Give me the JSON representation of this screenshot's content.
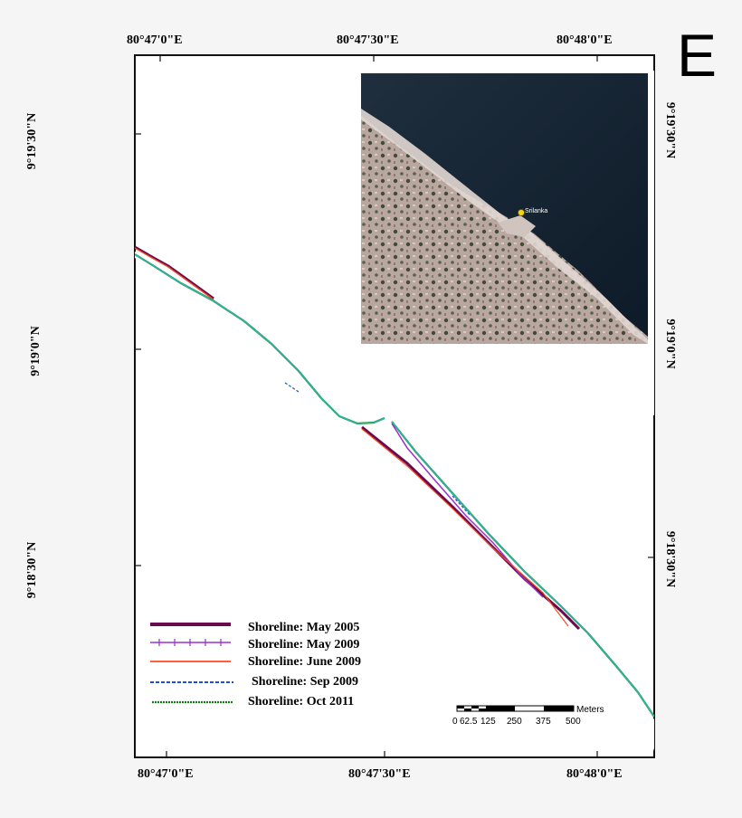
{
  "panel_label": "E",
  "top_axis": [
    "80°47'0\"E",
    "80°47'30\"E",
    "80°48'0\"E"
  ],
  "bottom_axis": [
    "80°47'0\"E",
    "80°47'30\"E",
    "80°48'0\"E"
  ],
  "left_axis": [
    "9°19'30\"N",
    "9°19'0\"N",
    "9°18'30\"N"
  ],
  "right_axis": [
    "9°19'30\"N",
    "9°19'0\"N",
    "9°18'30\"N"
  ],
  "inset": {
    "place_label": "Srilanka"
  },
  "legend": [
    {
      "label": "Shoreline: May 2005",
      "color": "#6a0a4e",
      "style": "thick"
    },
    {
      "label": "Shoreline: May 2009",
      "color": "#9b30d0",
      "style": "ticked"
    },
    {
      "label": "Shoreline: June 2009",
      "color": "#ff4a1c",
      "style": "solid"
    },
    {
      "label": "Shoreline: Sep 2009",
      "color": "#1d4fcf",
      "style": "dashed"
    },
    {
      "label": "Shoreline: Oct 2011",
      "color": "#1a7a1a",
      "style": "dotted"
    }
  ],
  "scale_bar": {
    "unit": "Meters",
    "ticks": [
      "0",
      "62.5",
      "125",
      "250",
      "375",
      "500"
    ]
  }
}
